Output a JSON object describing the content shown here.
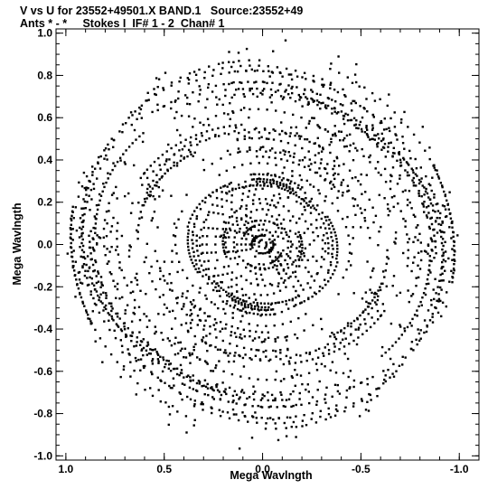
{
  "header": {
    "line1": "V vs U for 23552+49501.X BAND.1   Source:23552+49",
    "line2": "Ants * - *     Stokes I  IF# 1 - 2  Chan# 1"
  },
  "chart_data": {
    "type": "scatter",
    "title": "V vs U for 23552+49501.X BAND.1   Source:23552+49",
    "subtitle": "Ants * - *     Stokes I  IF# 1 - 2  Chan# 1",
    "xlabel": "Mega Wavlngth",
    "ylabel": "Mega Wavlngth",
    "xlim": [
      1.05,
      -1.1
    ],
    "ylim": [
      -1.02,
      1.02
    ],
    "x_ticks": [
      1.0,
      0.5,
      0.0,
      -0.5,
      -1.0
    ],
    "x_tick_labels": [
      "1.0",
      "0.5",
      "0.0",
      "-0.5",
      "-1.0"
    ],
    "y_ticks": [
      1.0,
      0.8,
      0.6,
      0.4,
      0.2,
      0.0,
      -0.2,
      -0.4,
      -0.6,
      -0.8,
      -1.0
    ],
    "y_tick_labels": [
      "1.0",
      "0.8",
      "0.6",
      "0.4",
      "0.2",
      "0.0",
      "-0.2",
      "-0.4",
      "-0.6",
      "-0.8",
      "-1.0"
    ],
    "grid": false,
    "marker_color": "#000000",
    "points_description_note": "",
    "point_groups": [
      {
        "u_center": 0.0,
        "v_center": 0.0,
        "max_radius": 0.35
      },
      {
        "u_center": 0.0,
        "v_center": 0.0,
        "max_radius": 1.0
      }
    ]
  }
}
